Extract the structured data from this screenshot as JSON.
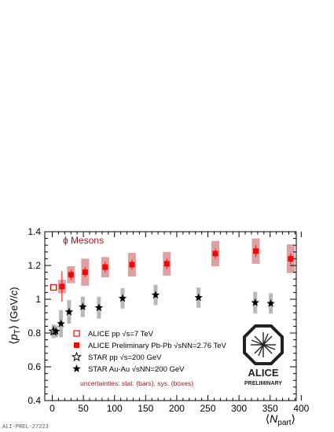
{
  "chart_data": {
    "type": "scatter",
    "ylabel_parts": {
      "open": "⟨",
      "main": "p",
      "sub": "T",
      "close": "⟩",
      "unit": " (GeV/",
      "unit_c": "c",
      "unit_close": ")"
    },
    "xlabel_parts": {
      "open": "⟨",
      "main": "N",
      "sub": "part",
      "close": "⟩"
    },
    "annotation": "ϕ Mesons",
    "uncertainty_note": "uncertainties: stat. (bars), sys. (boxes)",
    "xlim": [
      -12,
      392
    ],
    "ylim": [
      0.4,
      1.4
    ],
    "x_ticks": [
      "0",
      "50",
      "100",
      "150",
      "200",
      "250",
      "300",
      "350",
      "400"
    ],
    "y_ticks": [
      "0.4",
      "0.6",
      "0.8",
      "1",
      "1.2",
      "1.4"
    ],
    "series": [
      {
        "name": "ALICE pp √s=7 TeV",
        "marker": "open-square",
        "color": "#ff0000",
        "sys_color": "#f4c0c0",
        "points": [
          {
            "x": 2,
            "y": 1.07,
            "stat": 0.012,
            "sys": 0.018
          }
        ]
      },
      {
        "name": "ALICE Preliminary Pb-Pb √sNN=2.76 TeV",
        "marker": "filled-square",
        "color": "#ff0000",
        "sys_color": "#dea0a0",
        "points": [
          {
            "x": 15.6,
            "y": 1.075,
            "stat": 0.09,
            "sys": 0.04
          },
          {
            "x": 30.1,
            "y": 1.145,
            "stat": 0.03,
            "sys": 0.05
          },
          {
            "x": 52.8,
            "y": 1.16,
            "stat": 0.03,
            "sys": 0.08
          },
          {
            "x": 85,
            "y": 1.19,
            "stat": 0.03,
            "sys": 0.06
          },
          {
            "x": 128,
            "y": 1.205,
            "stat": 0.03,
            "sys": 0.07
          },
          {
            "x": 184,
            "y": 1.21,
            "stat": 0.03,
            "sys": 0.07
          },
          {
            "x": 262,
            "y": 1.27,
            "stat": 0.03,
            "sys": 0.075
          },
          {
            "x": 327,
            "y": 1.285,
            "stat": 0.035,
            "sys": 0.075
          },
          {
            "x": 383,
            "y": 1.24,
            "stat": 0.03,
            "sys": 0.085
          }
        ]
      },
      {
        "name": "STAR pp √s=200 GeV",
        "marker": "open-star",
        "color": "#000000",
        "sys_color": "#b8b8b8",
        "points": [
          {
            "x": 2,
            "y": 0.81,
            "stat": 0.02,
            "sys": 0.04
          }
        ]
      },
      {
        "name": "STAR Au-Au √sNN=200 GeV",
        "marker": "filled-star",
        "color": "#000000",
        "sys_color": "#b8b8b8",
        "points": [
          {
            "x": 6,
            "y": 0.81,
            "stat": 0.01,
            "sys": 0.035
          },
          {
            "x": 14,
            "y": 0.855,
            "stat": 0.01,
            "sys": 0.08
          },
          {
            "x": 27,
            "y": 0.925,
            "stat": 0.01,
            "sys": 0.07
          },
          {
            "x": 49,
            "y": 0.955,
            "stat": 0.01,
            "sys": 0.06
          },
          {
            "x": 75,
            "y": 0.95,
            "stat": 0.01,
            "sys": 0.065
          },
          {
            "x": 113,
            "y": 1.005,
            "stat": 0.01,
            "sys": 0.06
          },
          {
            "x": 166,
            "y": 1.025,
            "stat": 0.01,
            "sys": 0.06
          },
          {
            "x": 235,
            "y": 1.01,
            "stat": 0.01,
            "sys": 0.06
          },
          {
            "x": 326,
            "y": 0.98,
            "stat": 0.01,
            "sys": 0.065
          },
          {
            "x": 351,
            "y": 0.975,
            "stat": 0.01,
            "sys": 0.06
          }
        ]
      }
    ],
    "legend_placement": "bottom-left",
    "grid": false
  },
  "logo": {
    "name": "ALICE",
    "subtitle": "PRELIMINARY"
  },
  "figure_id": "ALI-PREL-27223"
}
